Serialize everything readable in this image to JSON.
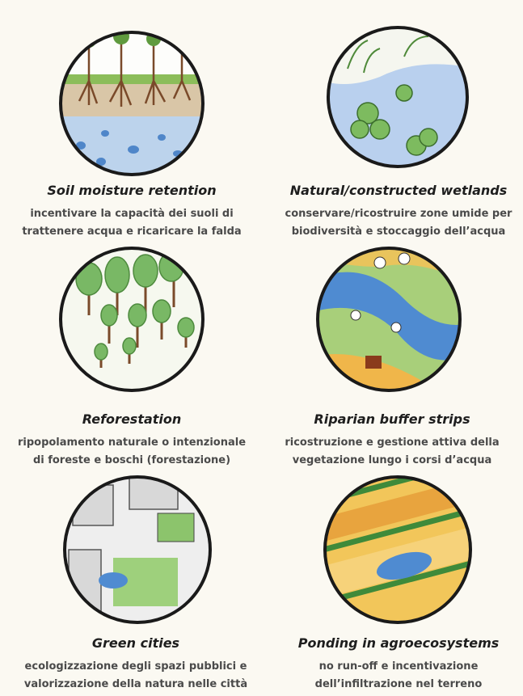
{
  "items": [
    {
      "title": "Soil moisture retention",
      "description": [
        "incentivare la capacità dei suoli di",
        "trattenere acqua e ricaricare la falda"
      ]
    },
    {
      "title": "Natural/constructed wetlands",
      "description": [
        "conservare/ricostruire zone umide per",
        "biodiversità e stoccaggio dell’acqua"
      ]
    },
    {
      "title": "Reforestation",
      "description": [
        "ripopolamento naturale o intenzionale",
        "di foreste e boschi (forestazione)"
      ]
    },
    {
      "title": "Riparian buffer strips",
      "description": [
        "ricostruzione e gestione attiva della",
        "vegetazione lungo i corsi d’acqua"
      ]
    },
    {
      "title": "Green cities",
      "description": [
        "ecologizzazione degli spazi pubblici e",
        "valorizzazione della natura nelle città"
      ]
    },
    {
      "title": "Ponding in agroecosystems",
      "description": [
        "no run-off e incentivazione",
        "dell’infiltrazione nel terreno"
      ]
    }
  ]
}
